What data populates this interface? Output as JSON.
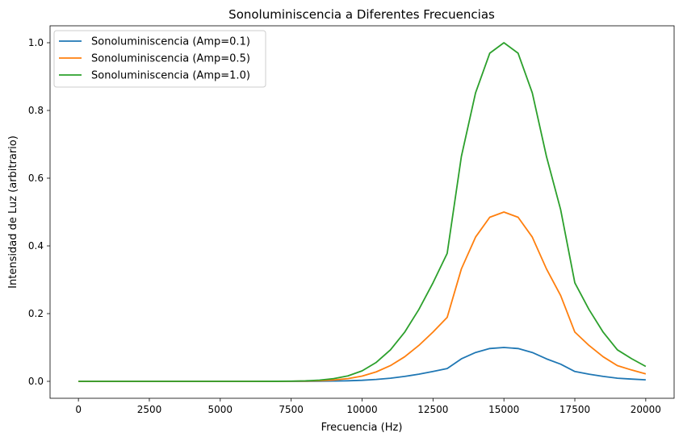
{
  "chart_data": {
    "type": "line",
    "title": "Sonoluminiscencia a Diferentes Frecuencias",
    "xlabel": "Frecuencia (Hz)",
    "ylabel": "Intensidad de Luz (arbitrario)",
    "xlim": [
      -1000,
      21000
    ],
    "ylim": [
      -0.05,
      1.05
    ],
    "xticks": [
      0,
      2500,
      5000,
      7500,
      10000,
      12500,
      15000,
      17500,
      20000
    ],
    "yticks": [
      0.0,
      0.2,
      0.4,
      0.6,
      0.8,
      1.0
    ],
    "xtick_labels": [
      "0",
      "2500",
      "5000",
      "7500",
      "10000",
      "12500",
      "15000",
      "17500",
      "20000"
    ],
    "ytick_labels": [
      "0.0",
      "0.2",
      "0.4",
      "0.6",
      "0.8",
      "1.0"
    ],
    "grid": false,
    "legend_position": "top-left",
    "x": [
      0,
      1000,
      2000,
      3000,
      4000,
      5000,
      6000,
      7000,
      7500,
      8000,
      8500,
      9000,
      9500,
      10000,
      10500,
      11000,
      11500,
      12000,
      12500,
      13000,
      13500,
      14000,
      14500,
      15000,
      15500,
      16000,
      16500,
      17000,
      17500,
      18000,
      18500,
      19000,
      19500,
      20000
    ],
    "series": [
      {
        "name": "Sonoluminiscencia (Amp=0.1)",
        "color": "#1f77b4",
        "values": [
          0.0,
          0.0,
          0.0,
          0.0,
          0.0,
          0.0,
          0.0,
          2e-05,
          6e-05,
          0.00015,
          0.00036,
          0.0008,
          0.0016,
          0.0031,
          0.0056,
          0.0093,
          0.0145,
          0.0212,
          0.0291,
          0.0378,
          0.0664,
          0.0852,
          0.0969,
          0.1,
          0.0969,
          0.0852,
          0.0664,
          0.0507,
          0.0291,
          0.0212,
          0.0145,
          0.0093,
          0.0067,
          0.0044
        ]
      },
      {
        "name": "Sonoluminiscencia (Amp=0.5)",
        "color": "#ff7f0e",
        "values": [
          0.0,
          0.0,
          0.0,
          0.0,
          0.0,
          0.0,
          0.0,
          0.0001,
          0.0003,
          0.00075,
          0.0018,
          0.004,
          0.008,
          0.0155,
          0.028,
          0.0465,
          0.0725,
          0.106,
          0.1455,
          0.189,
          0.332,
          0.426,
          0.4845,
          0.5,
          0.4845,
          0.426,
          0.332,
          0.2535,
          0.1455,
          0.106,
          0.0725,
          0.0465,
          0.0335,
          0.022
        ]
      },
      {
        "name": "Sonoluminiscencia (Amp=1.0)",
        "color": "#2ca02c",
        "values": [
          0.0,
          0.0,
          0.0,
          0.0,
          0.0,
          0.0,
          0.0,
          0.0002,
          0.0006,
          0.0015,
          0.0036,
          0.008,
          0.016,
          0.031,
          0.056,
          0.093,
          0.145,
          0.212,
          0.291,
          0.378,
          0.664,
          0.852,
          0.969,
          1.0,
          0.969,
          0.852,
          0.664,
          0.507,
          0.291,
          0.212,
          0.145,
          0.093,
          0.067,
          0.044
        ]
      }
    ]
  }
}
